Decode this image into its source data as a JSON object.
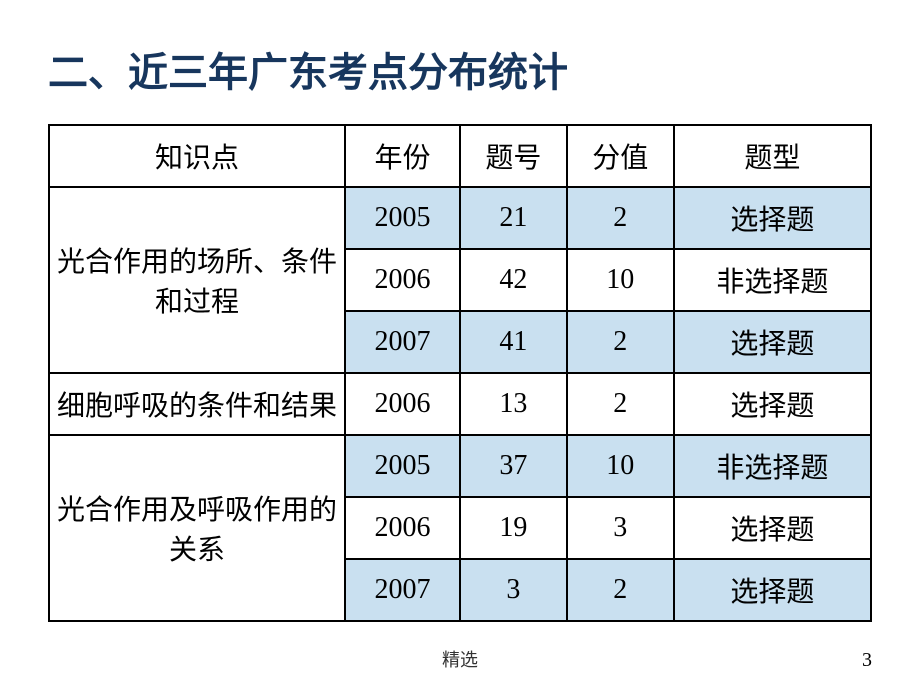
{
  "title": "二、近三年广东考点分布统计",
  "headers": {
    "topic": "知识点",
    "year": "年份",
    "qnum": "题号",
    "score": "分值",
    "type": "题型"
  },
  "rows": [
    {
      "topic": "光合作用的场所、条件和过程",
      "year": "2005",
      "qnum": "21",
      "score": "2",
      "type": "选择题",
      "highlight": true,
      "rowspan": 3
    },
    {
      "topic": null,
      "year": "2006",
      "qnum": "42",
      "score": "10",
      "type": "非选择题",
      "highlight": false
    },
    {
      "topic": null,
      "year": "2007",
      "qnum": "41",
      "score": "2",
      "type": "选择题",
      "highlight": true
    },
    {
      "topic": "细胞呼吸的条件和结果",
      "year": "2006",
      "qnum": "13",
      "score": "2",
      "type": "选择题",
      "highlight": false,
      "rowspan": 1
    },
    {
      "topic": "光合作用及呼吸作用的关系",
      "year": "2005",
      "qnum": "37",
      "score": "10",
      "type": "非选择题",
      "highlight": true,
      "rowspan": 3
    },
    {
      "topic": null,
      "year": "2006",
      "qnum": "19",
      "score": "3",
      "type": "选择题",
      "highlight": false
    },
    {
      "topic": null,
      "year": "2007",
      "qnum": "3",
      "score": "2",
      "type": "选择题",
      "highlight": true
    }
  ],
  "footer": "精选",
  "pageNumber": "3",
  "colors": {
    "title": "#17365d",
    "border": "#000000",
    "highlight": "#c9e0f0",
    "background": "#ffffff"
  }
}
